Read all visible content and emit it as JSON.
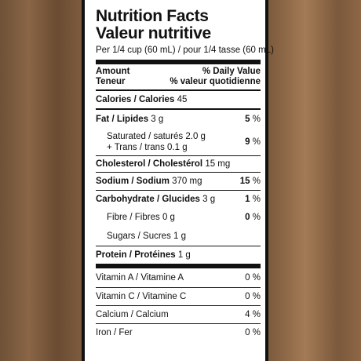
{
  "label": {
    "title_en": "Nutrition Facts",
    "title_fr": "Valeur nutritive",
    "serving": "Per 1/4 cup (60 mL) / pour 1/4 tasse (60 mL)",
    "amount_en": "Amount",
    "amount_fr": "Teneur",
    "dv_en": "% Daily Value",
    "dv_fr": "% valeur quotidienne",
    "calories": {
      "label": "Calories / Calories",
      "value": "45"
    },
    "fat": {
      "label": "Fat / Lipides",
      "value": "3 g",
      "dv": "5",
      "unit": "%"
    },
    "saturated": {
      "label": "Saturated / saturés",
      "value": "2.0 g",
      "dv": "9",
      "unit": "%"
    },
    "trans": {
      "label": "+ Trans / trans",
      "value": "0.1 g"
    },
    "cholesterol": {
      "label": "Cholesterol / Cholestérol",
      "value": "15 mg"
    },
    "sodium": {
      "label": "Sodium / Sodium",
      "value": "370 mg",
      "dv": "15",
      "unit": "%"
    },
    "carbohydrate": {
      "label": "Carbohydrate / Glucides",
      "value": "3 g",
      "dv": "1",
      "unit": "%"
    },
    "fibre": {
      "label": "Fibre / Fibres",
      "value": "0 g",
      "dv": "0",
      "unit": "%"
    },
    "sugars": {
      "label": "Sugars / Sucres",
      "value": "1 g"
    },
    "protein": {
      "label": "Protein / Protéines",
      "value": "1 g"
    },
    "vitamin_a": {
      "label": "Vitamin A / Vitamine A",
      "dv": "0 %"
    },
    "vitamin_c": {
      "label": "Vitamin C / Vitamine C",
      "dv": "0 %"
    },
    "calcium": {
      "label": "Calcium / Calcium",
      "dv": "4 %"
    },
    "iron": {
      "label": "Iron / Fer",
      "dv": "0 %"
    }
  }
}
